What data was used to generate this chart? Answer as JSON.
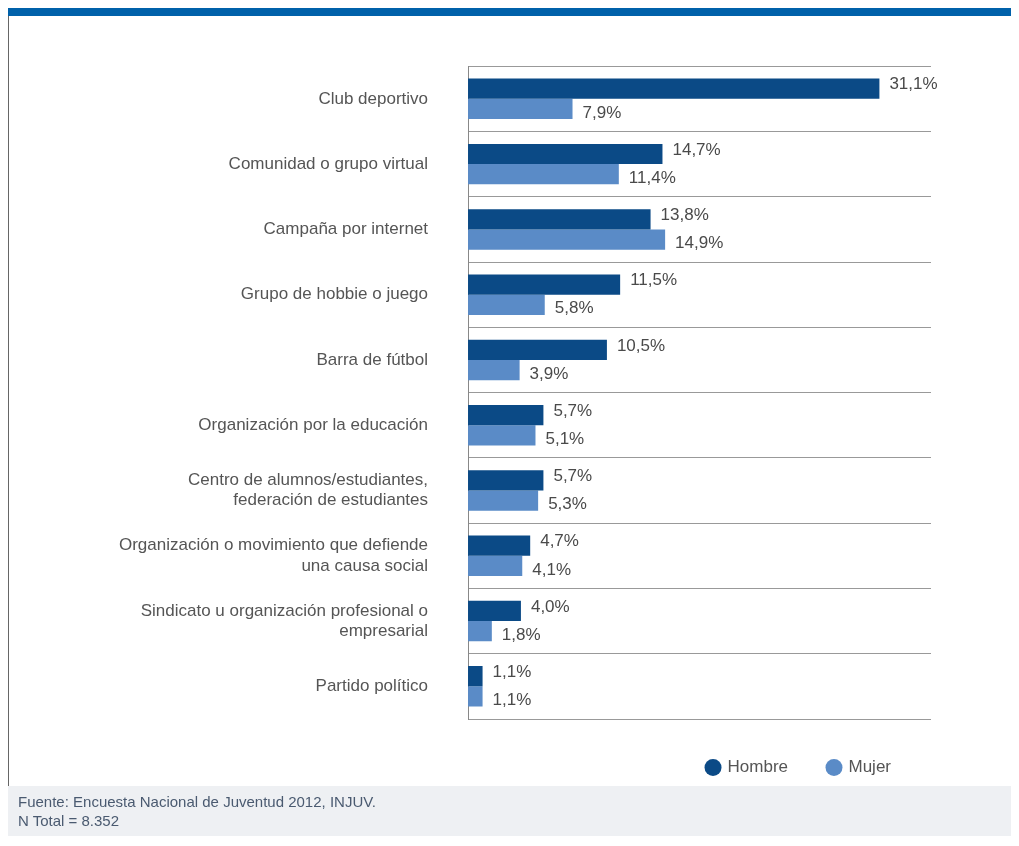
{
  "chart_data": {
    "type": "bar",
    "orientation": "horizontal",
    "categories": [
      "Club deportivo",
      "Comunidad o grupo virtual",
      "Campaña por internet",
      "Grupo de hobbie o juego",
      "Barra de fútbol",
      "Organización por la educación",
      "Centro de alumnos/estudiantes, federación de estudiantes",
      "Organización o movimiento que defiende una causa social",
      "Sindicato u organización profesional o empresarial",
      "Partido político"
    ],
    "series": [
      {
        "name": "Hombre",
        "color": "#0b4a86",
        "values": [
          31.1,
          14.7,
          13.8,
          11.5,
          10.5,
          5.7,
          5.7,
          4.7,
          4.0,
          1.1
        ],
        "value_labels": [
          "31,1%",
          "14,7%",
          "13,8%",
          "11,5%",
          "10,5%",
          "5,7%",
          "5,7%",
          "4,7%",
          "4,0%",
          "1,1%"
        ]
      },
      {
        "name": "Mujer",
        "color": "#5a8bc7",
        "values": [
          7.9,
          11.4,
          14.9,
          5.8,
          3.9,
          5.1,
          5.3,
          4.1,
          1.8,
          1.1
        ],
        "value_labels": [
          "7,9%",
          "11,4%",
          "14,9%",
          "5,8%",
          "3,9%",
          "5,1%",
          "5,3%",
          "4,1%",
          "1,8%",
          "1,1%"
        ]
      }
    ],
    "grid": "y",
    "legend": "bottom right",
    "annotations": [
      "Fuente: Encuesta Nacional de Juventud 2012, INJUV.",
      "N Total = 8.352"
    ]
  }
}
